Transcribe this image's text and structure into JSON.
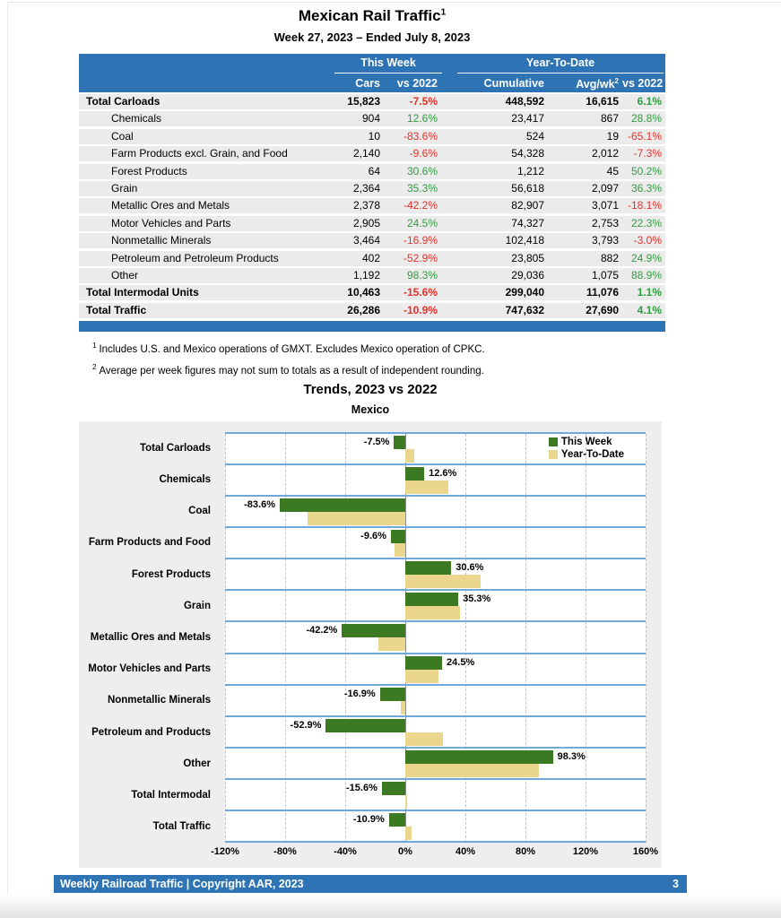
{
  "page": {
    "title": "Mexican Rail Traffic",
    "title_sup": "1",
    "subtitle": "Week 27, 2023 – Ended July 8, 2023",
    "footnotes": [
      {
        "sup": "1",
        "text": "Includes U.S. and Mexico operations of GMXT. Excludes Mexico operation of CPKC."
      },
      {
        "sup": "2",
        "text": "Average per week figures may not sum to totals as a result of independent rounding."
      }
    ],
    "footer": {
      "left": "Weekly Railroad Traffic | Copyright AAR, 2023",
      "page_number": "3"
    }
  },
  "table": {
    "groups": {
      "this_week": "This Week",
      "year_to_date": "Year-To-Date"
    },
    "columns": {
      "cars": "Cars",
      "vs_week": "vs 2022",
      "cumulative": "Cumulative",
      "avg_wk": "Avg/wk",
      "avg_wk_sup": "2",
      "vs_ytd": "vs 2022"
    },
    "rows": [
      {
        "label": "Total Carloads",
        "style": "total",
        "cars": "15,823",
        "vs_week": "-7.5%",
        "cumulative": "448,592",
        "avg_wk": "16,615",
        "vs_ytd": "6.1%"
      },
      {
        "label": "Chemicals",
        "style": "sub",
        "cars": "904",
        "vs_week": "12.6%",
        "cumulative": "23,417",
        "avg_wk": "867",
        "vs_ytd": "28.8%"
      },
      {
        "label": "Coal",
        "style": "sub",
        "cars": "10",
        "vs_week": "-83.6%",
        "cumulative": "524",
        "avg_wk": "19",
        "vs_ytd": "-65.1%"
      },
      {
        "label": "Farm Products excl. Grain, and Food",
        "style": "sub",
        "cars": "2,140",
        "vs_week": "-9.6%",
        "cumulative": "54,328",
        "avg_wk": "2,012",
        "vs_ytd": "-7.3%"
      },
      {
        "label": "Forest Products",
        "style": "sub",
        "cars": "64",
        "vs_week": "30.6%",
        "cumulative": "1,212",
        "avg_wk": "45",
        "vs_ytd": "50.2%"
      },
      {
        "label": "Grain",
        "style": "sub",
        "cars": "2,364",
        "vs_week": "35.3%",
        "cumulative": "56,618",
        "avg_wk": "2,097",
        "vs_ytd": "36.3%"
      },
      {
        "label": "Metallic Ores and Metals",
        "style": "sub",
        "cars": "2,378",
        "vs_week": "-42.2%",
        "cumulative": "82,907",
        "avg_wk": "3,071",
        "vs_ytd": "-18.1%"
      },
      {
        "label": "Motor Vehicles and Parts",
        "style": "sub",
        "cars": "2,905",
        "vs_week": "24.5%",
        "cumulative": "74,327",
        "avg_wk": "2,753",
        "vs_ytd": "22.3%"
      },
      {
        "label": "Nonmetallic Minerals",
        "style": "sub",
        "cars": "3,464",
        "vs_week": "-16.9%",
        "cumulative": "102,418",
        "avg_wk": "3,793",
        "vs_ytd": "-3.0%"
      },
      {
        "label": "Petroleum and Petroleum Products",
        "style": "sub",
        "cars": "402",
        "vs_week": "-52.9%",
        "cumulative": "23,805",
        "avg_wk": "882",
        "vs_ytd": "24.9%"
      },
      {
        "label": "Other",
        "style": "sub",
        "cars": "1,192",
        "vs_week": "98.3%",
        "cumulative": "29,036",
        "avg_wk": "1,075",
        "vs_ytd": "88.9%"
      },
      {
        "label": "Total Intermodal Units",
        "style": "total",
        "cars": "10,463",
        "vs_week": "-15.6%",
        "cumulative": "299,040",
        "avg_wk": "11,076",
        "vs_ytd": "1.1%"
      },
      {
        "label": "Total Traffic",
        "style": "total",
        "cars": "26,286",
        "vs_week": "-10.9%",
        "cumulative": "747,632",
        "avg_wk": "27,690",
        "vs_ytd": "4.1%"
      }
    ]
  },
  "chart_data": {
    "type": "bar",
    "orientation": "horizontal",
    "title": "Trends, 2023 vs 2022",
    "subtitle": "Mexico",
    "categories": [
      "Total Carloads",
      "Chemicals",
      "Coal",
      "Farm Products and Food",
      "Forest Products",
      "Grain",
      "Metallic Ores and Metals",
      "Motor Vehicles and Parts",
      "Nonmetallic Minerals",
      "Petroleum and Products",
      "Other",
      "Total Intermodal",
      "Total Traffic"
    ],
    "series": [
      {
        "name": "This Week",
        "color": "#3B7A23",
        "values": [
          -7.5,
          12.6,
          -83.6,
          -9.6,
          30.6,
          35.3,
          -42.2,
          24.5,
          -16.9,
          -52.9,
          98.3,
          -15.6,
          -10.9
        ]
      },
      {
        "name": "Year-To-Date",
        "color": "#EAD78D",
        "values": [
          6.1,
          28.8,
          -65.1,
          -7.3,
          50.2,
          36.3,
          -18.1,
          22.3,
          -3.0,
          24.9,
          88.9,
          1.1,
          4.1
        ]
      }
    ],
    "bar_labels": [
      "-7.5%",
      "12.6%",
      "-83.6%",
      "-9.6%",
      "30.6%",
      "35.3%",
      "-42.2%",
      "24.5%",
      "-16.9%",
      "-52.9%",
      "98.3%",
      "-15.6%",
      "-10.9%"
    ],
    "xlim": [
      -120,
      160
    ],
    "x_ticks": [
      "-120%",
      "-80%",
      "-40%",
      "0%",
      "40%",
      "80%",
      "120%",
      "160%"
    ],
    "x_tick_values": [
      -120,
      -80,
      -40,
      0,
      40,
      80,
      120,
      160
    ],
    "legend_position": "top-right",
    "gridlines": "dashed vertical every 40%, solid line at 0%"
  },
  "colors": {
    "header_blue": "#2E74B5",
    "row_gray": "#EBEBEB",
    "negative_red": "#E6302A",
    "positive_green": "#2F9E3E",
    "chart_background": "#EEEEEE",
    "row_separator_blue": "#6FA8DC",
    "this_week_green": "#3B7A23",
    "year_to_date_tan": "#EAD78D"
  }
}
